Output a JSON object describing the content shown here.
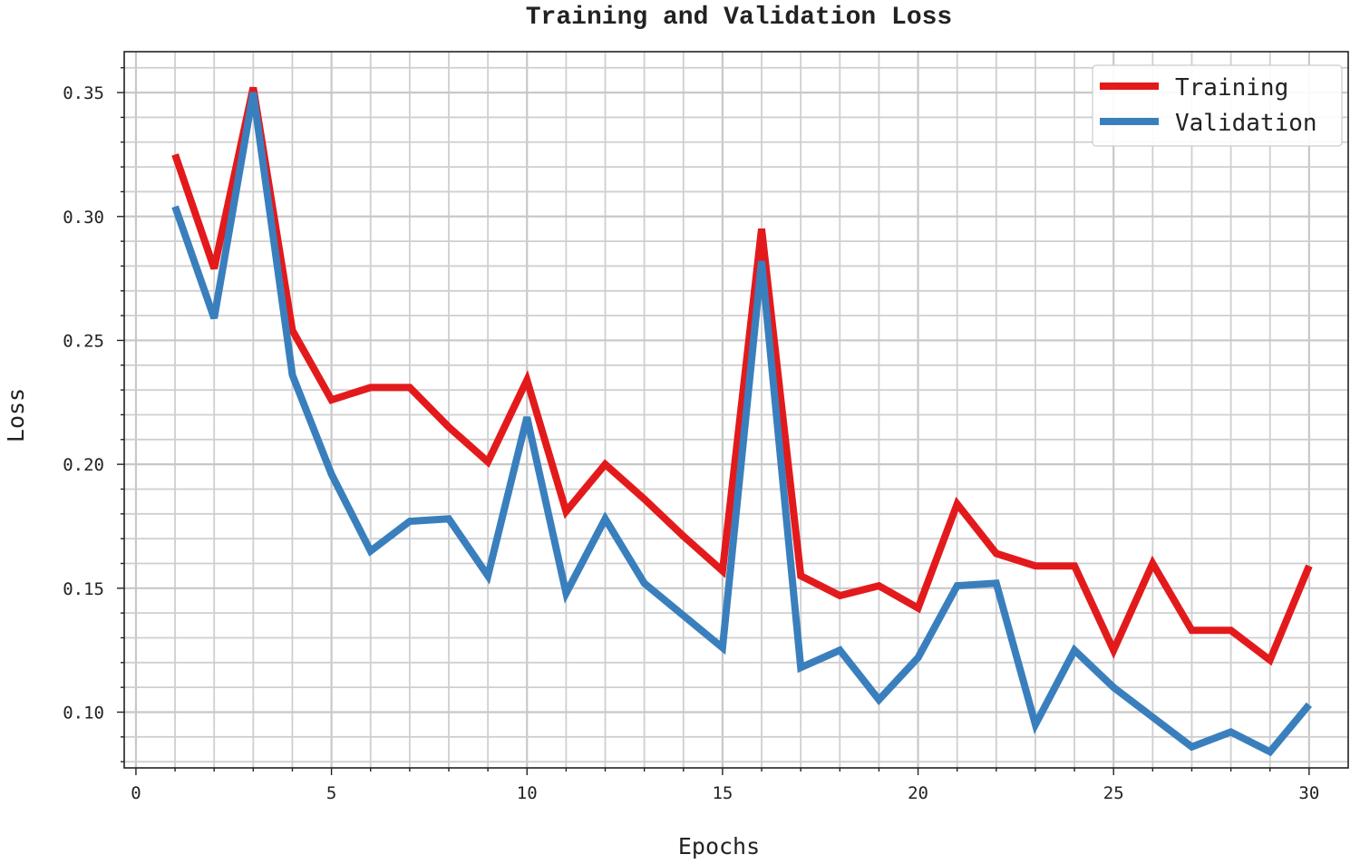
{
  "chart_data": {
    "type": "line",
    "title": "Training and Validation Loss",
    "xlabel": "Epochs",
    "ylabel": "Loss",
    "xlim": [
      -0.3,
      31
    ],
    "ylim": [
      0.0775,
      0.3665
    ],
    "xticks": [
      0,
      5,
      10,
      15,
      20,
      25,
      30
    ],
    "xtick_labels": [
      "0",
      "5",
      "10",
      "15",
      "20",
      "25",
      "30"
    ],
    "yticks": [
      0.1,
      0.15,
      0.2,
      0.25,
      0.3,
      0.35
    ],
    "ytick_labels": [
      "0.10",
      "0.15",
      "0.20",
      "0.25",
      "0.30",
      "0.35"
    ],
    "grid": true,
    "legend_position": "top-right",
    "x": [
      1,
      2,
      3,
      4,
      5,
      6,
      7,
      8,
      9,
      10,
      11,
      12,
      13,
      14,
      15,
      16,
      17,
      18,
      19,
      20,
      21,
      22,
      23,
      24,
      25,
      26,
      27,
      28,
      29,
      30
    ],
    "series": [
      {
        "name": "Training",
        "color": "#e31a1c",
        "values": [
          0.325,
          0.279,
          0.352,
          0.254,
          0.226,
          0.231,
          0.231,
          0.215,
          0.201,
          0.234,
          0.181,
          0.2,
          0.186,
          0.171,
          0.157,
          0.295,
          0.155,
          0.147,
          0.151,
          0.142,
          0.184,
          0.164,
          0.159,
          0.159,
          0.125,
          0.16,
          0.133,
          0.133,
          0.121,
          0.159
        ]
      },
      {
        "name": "Validation",
        "color": "#3a7fbd",
        "values": [
          0.304,
          0.259,
          0.35,
          0.236,
          0.196,
          0.165,
          0.177,
          0.178,
          0.155,
          0.219,
          0.148,
          0.178,
          0.152,
          0.139,
          0.126,
          0.282,
          0.118,
          0.125,
          0.105,
          0.122,
          0.151,
          0.152,
          0.095,
          0.125,
          0.11,
          0.098,
          0.086,
          0.092,
          0.084,
          0.103
        ]
      }
    ]
  }
}
